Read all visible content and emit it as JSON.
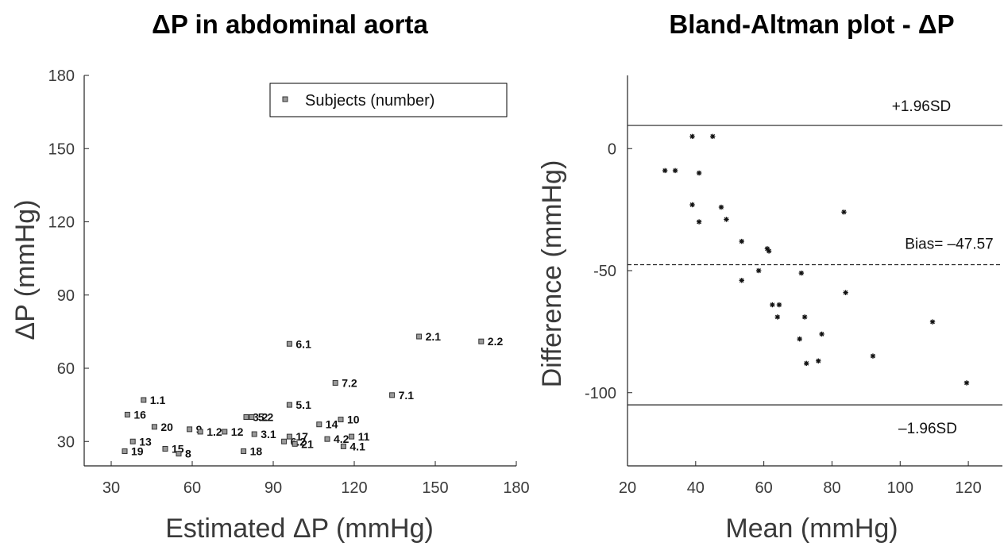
{
  "chart_data": [
    {
      "type": "scatter",
      "title": "ΔP  in abdominal aorta",
      "xlabel": "Estimated ΔP (mmHg)",
      "ylabel": "ΔP (mmHg)",
      "xlim": [
        20,
        180
      ],
      "ylim": [
        20,
        180
      ],
      "xticks": [
        30,
        60,
        90,
        120,
        150,
        180
      ],
      "yticks": [
        30,
        60,
        90,
        120,
        150,
        180
      ],
      "legend": {
        "label": "Subjects (number)",
        "position": "top-right"
      },
      "series": [
        {
          "name": "Subjects (number)",
          "points": [
            {
              "label": "1.1",
              "x": 42,
              "y": 47
            },
            {
              "label": "16",
              "x": 36,
              "y": 41
            },
            {
              "label": "20",
              "x": 46,
              "y": 36
            },
            {
              "label": "13",
              "x": 38,
              "y": 30
            },
            {
              "label": "19",
              "x": 35,
              "y": 26
            },
            {
              "label": "15",
              "x": 50,
              "y": 27
            },
            {
              "label": "8",
              "x": 55,
              "y": 25
            },
            {
              "label": "9",
              "x": 59,
              "y": 35
            },
            {
              "label": "1.2",
              "x": 63,
              "y": 34
            },
            {
              "label": "3.2",
              "x": 80,
              "y": 40
            },
            {
              "label": "12",
              "x": 72,
              "y": 34
            },
            {
              "label": "5.2",
              "x": 82,
              "y": 40
            },
            {
              "label": "3.1",
              "x": 83,
              "y": 33
            },
            {
              "label": "18",
              "x": 79,
              "y": 26
            },
            {
              "label": "17",
              "x": 96,
              "y": 32
            },
            {
              "label": "6.2",
              "x": 94,
              "y": 30
            },
            {
              "label": "21",
              "x": 98,
              "y": 29
            },
            {
              "label": "5.1",
              "x": 96,
              "y": 45
            },
            {
              "label": "6.1",
              "x": 96,
              "y": 70
            },
            {
              "label": "14",
              "x": 107,
              "y": 37
            },
            {
              "label": "10",
              "x": 115,
              "y": 39
            },
            {
              "label": "4.2",
              "x": 110,
              "y": 31
            },
            {
              "label": "11",
              "x": 119,
              "y": 32
            },
            {
              "label": "4.1",
              "x": 116,
              "y": 28
            },
            {
              "label": "7.2",
              "x": 113,
              "y": 54
            },
            {
              "label": "7.1",
              "x": 134,
              "y": 49
            },
            {
              "label": "2.1",
              "x": 144,
              "y": 73
            },
            {
              "label": "2.2",
              "x": 167,
              "y": 71
            }
          ]
        }
      ]
    },
    {
      "type": "scatter",
      "title": "Bland-Altman plot - ΔP",
      "xlabel": "Mean (mmHg)",
      "ylabel": "Difference (mmHg)",
      "xlim": [
        20,
        130
      ],
      "ylim": [
        -130,
        30
      ],
      "xticks": [
        20,
        40,
        60,
        80,
        100,
        120
      ],
      "yticks": [
        0,
        -50,
        -100
      ],
      "ytick_labels": [
        "0",
        "-50",
        "-100"
      ],
      "reference_lines": [
        {
          "label": "+1.96SD",
          "y": 9.5,
          "style": "solid"
        },
        {
          "label": "Bias= –47.57",
          "y": -47.57,
          "style": "dashed"
        },
        {
          "label": "–1.96SD",
          "y": -105,
          "style": "solid"
        }
      ],
      "series": [
        {
          "marker": "asterisk",
          "points": [
            {
              "x": 31,
              "y": -9
            },
            {
              "x": 34,
              "y": -9
            },
            {
              "x": 39,
              "y": 5
            },
            {
              "x": 45,
              "y": 5
            },
            {
              "x": 41,
              "y": -10
            },
            {
              "x": 39,
              "y": -23
            },
            {
              "x": 41,
              "y": -30
            },
            {
              "x": 47.5,
              "y": -24
            },
            {
              "x": 49,
              "y": -29
            },
            {
              "x": 53.5,
              "y": -38
            },
            {
              "x": 53.5,
              "y": -54
            },
            {
              "x": 58.5,
              "y": -50
            },
            {
              "x": 61,
              "y": -41
            },
            {
              "x": 61.5,
              "y": -42
            },
            {
              "x": 62.5,
              "y": -64
            },
            {
              "x": 64.5,
              "y": -64
            },
            {
              "x": 64,
              "y": -69
            },
            {
              "x": 71,
              "y": -51
            },
            {
              "x": 72,
              "y": -69
            },
            {
              "x": 70.5,
              "y": -78
            },
            {
              "x": 72.5,
              "y": -88
            },
            {
              "x": 76,
              "y": -87
            },
            {
              "x": 77,
              "y": -76
            },
            {
              "x": 83.5,
              "y": -26
            },
            {
              "x": 84,
              "y": -59
            },
            {
              "x": 92,
              "y": -85
            },
            {
              "x": 109.5,
              "y": -71
            },
            {
              "x": 119.5,
              "y": -96
            }
          ]
        }
      ]
    }
  ]
}
